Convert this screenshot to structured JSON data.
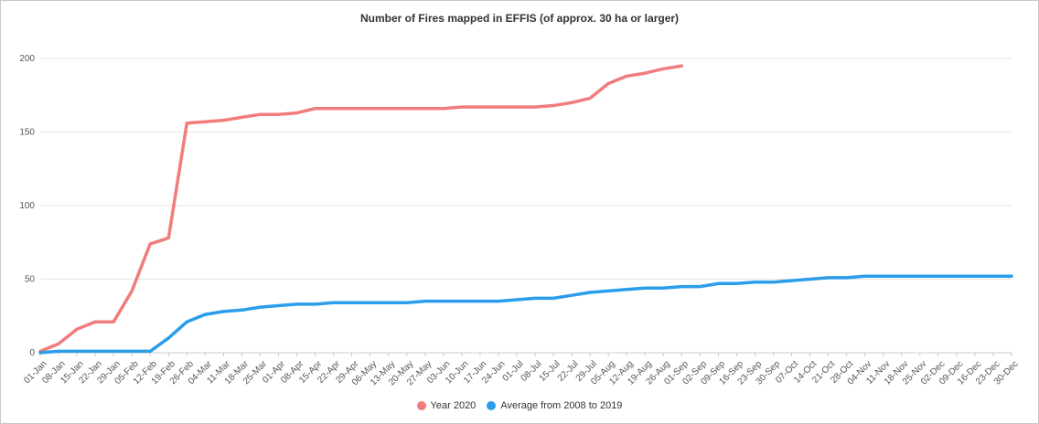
{
  "chart_data": {
    "type": "line",
    "title": "Number of Fires mapped in EFFIS (of approx. 30 ha or larger)",
    "xlabel": "",
    "ylabel": "",
    "ylim": [
      0,
      200
    ],
    "yticks": [
      "0",
      "50",
      "100",
      "150",
      "200"
    ],
    "grid": true,
    "legend_position": "bottom-center",
    "categories": [
      "01-Jan",
      "08-Jan",
      "15-Jan",
      "22-Jan",
      "29-Jan",
      "05-Feb",
      "12-Feb",
      "19-Feb",
      "26-Feb",
      "04-Mar",
      "11-Mar",
      "18-Mar",
      "25-Mar",
      "01-Apr",
      "08-Apr",
      "15-Apr",
      "22-Apr",
      "29-Apr",
      "06-May",
      "13-May",
      "20-May",
      "27-May",
      "03-Jun",
      "10-Jun",
      "17-Jun",
      "24-Jun",
      "01-Jul",
      "08-Jul",
      "15-Jul",
      "22-Jul",
      "29-Jul",
      "05-Aug",
      "12-Aug",
      "19-Aug",
      "26-Aug",
      "01-Sep",
      "02-Sep",
      "09-Sep",
      "16-Sep",
      "23-Sep",
      "30-Sep",
      "07-Oct",
      "14-Oct",
      "21-Oct",
      "28-Oct",
      "04-Nov",
      "11-Nov",
      "18-Nov",
      "25-Nov",
      "02-Dec",
      "09-Dec",
      "16-Dec",
      "23-Dec",
      "30-Dec"
    ],
    "series": [
      {
        "name": "Year 2020",
        "color": "#f07c7c",
        "points": [
          {
            "x": "01-Jan",
            "y": 1
          },
          {
            "x": "08-Jan",
            "y": 6
          },
          {
            "x": "15-Jan",
            "y": 16
          },
          {
            "x": "22-Jan",
            "y": 21
          },
          {
            "x": "29-Jan",
            "y": 21
          },
          {
            "x": "05-Feb",
            "y": 42
          },
          {
            "x": "12-Feb",
            "y": 74
          },
          {
            "x": "19-Feb",
            "y": 78
          },
          {
            "x": "26-Feb",
            "y": 156
          },
          {
            "x": "04-Mar",
            "y": 157
          },
          {
            "x": "11-Mar",
            "y": 158
          },
          {
            "x": "18-Mar",
            "y": 160
          },
          {
            "x": "25-Mar",
            "y": 162
          },
          {
            "x": "01-Apr",
            "y": 162
          },
          {
            "x": "08-Apr",
            "y": 163
          },
          {
            "x": "15-Apr",
            "y": 166
          },
          {
            "x": "22-Apr",
            "y": 166
          },
          {
            "x": "29-Apr",
            "y": 166
          },
          {
            "x": "06-May",
            "y": 166
          },
          {
            "x": "13-May",
            "y": 166
          },
          {
            "x": "20-May",
            "y": 166
          },
          {
            "x": "27-May",
            "y": 166
          },
          {
            "x": "03-Jun",
            "y": 166
          },
          {
            "x": "10-Jun",
            "y": 167
          },
          {
            "x": "17-Jun",
            "y": 167
          },
          {
            "x": "24-Jun",
            "y": 167
          },
          {
            "x": "01-Jul",
            "y": 167
          },
          {
            "x": "08-Jul",
            "y": 167
          },
          {
            "x": "15-Jul",
            "y": 168
          },
          {
            "x": "22-Jul",
            "y": 170
          },
          {
            "x": "29-Jul",
            "y": 173
          },
          {
            "x": "05-Aug",
            "y": 183
          },
          {
            "x": "12-Aug",
            "y": 188
          },
          {
            "x": "19-Aug",
            "y": 190
          },
          {
            "x": "26-Aug",
            "y": 193
          },
          {
            "x": "01-Sep",
            "y": 195
          }
        ]
      },
      {
        "name": "Average from 2008 to 2019",
        "color": "#2b9de9",
        "points": [
          {
            "x": "01-Jan",
            "y": 0
          },
          {
            "x": "08-Jan",
            "y": 1
          },
          {
            "x": "15-Jan",
            "y": 1
          },
          {
            "x": "22-Jan",
            "y": 1
          },
          {
            "x": "29-Jan",
            "y": 1
          },
          {
            "x": "05-Feb",
            "y": 1
          },
          {
            "x": "12-Feb",
            "y": 1
          },
          {
            "x": "19-Feb",
            "y": 10
          },
          {
            "x": "26-Feb",
            "y": 21
          },
          {
            "x": "04-Mar",
            "y": 26
          },
          {
            "x": "11-Mar",
            "y": 28
          },
          {
            "x": "18-Mar",
            "y": 29
          },
          {
            "x": "25-Mar",
            "y": 31
          },
          {
            "x": "01-Apr",
            "y": 32
          },
          {
            "x": "08-Apr",
            "y": 33
          },
          {
            "x": "15-Apr",
            "y": 33
          },
          {
            "x": "22-Apr",
            "y": 34
          },
          {
            "x": "29-Apr",
            "y": 34
          },
          {
            "x": "06-May",
            "y": 34
          },
          {
            "x": "13-May",
            "y": 34
          },
          {
            "x": "20-May",
            "y": 34
          },
          {
            "x": "27-May",
            "y": 35
          },
          {
            "x": "03-Jun",
            "y": 35
          },
          {
            "x": "10-Jun",
            "y": 35
          },
          {
            "x": "17-Jun",
            "y": 35
          },
          {
            "x": "24-Jun",
            "y": 35
          },
          {
            "x": "01-Jul",
            "y": 36
          },
          {
            "x": "08-Jul",
            "y": 37
          },
          {
            "x": "15-Jul",
            "y": 37
          },
          {
            "x": "22-Jul",
            "y": 39
          },
          {
            "x": "29-Jul",
            "y": 41
          },
          {
            "x": "05-Aug",
            "y": 42
          },
          {
            "x": "12-Aug",
            "y": 43
          },
          {
            "x": "19-Aug",
            "y": 44
          },
          {
            "x": "26-Aug",
            "y": 44
          },
          {
            "x": "01-Sep",
            "y": 45
          },
          {
            "x": "02-Sep",
            "y": 45
          },
          {
            "x": "09-Sep",
            "y": 47
          },
          {
            "x": "16-Sep",
            "y": 47
          },
          {
            "x": "23-Sep",
            "y": 48
          },
          {
            "x": "30-Sep",
            "y": 48
          },
          {
            "x": "07-Oct",
            "y": 49
          },
          {
            "x": "14-Oct",
            "y": 50
          },
          {
            "x": "21-Oct",
            "y": 51
          },
          {
            "x": "28-Oct",
            "y": 51
          },
          {
            "x": "04-Nov",
            "y": 52
          },
          {
            "x": "11-Nov",
            "y": 52
          },
          {
            "x": "18-Nov",
            "y": 52
          },
          {
            "x": "25-Nov",
            "y": 52
          },
          {
            "x": "02-Dec",
            "y": 52
          },
          {
            "x": "09-Dec",
            "y": 52
          },
          {
            "x": "16-Dec",
            "y": 52
          },
          {
            "x": "23-Dec",
            "y": 52
          },
          {
            "x": "30-Dec",
            "y": 52
          }
        ]
      }
    ]
  }
}
